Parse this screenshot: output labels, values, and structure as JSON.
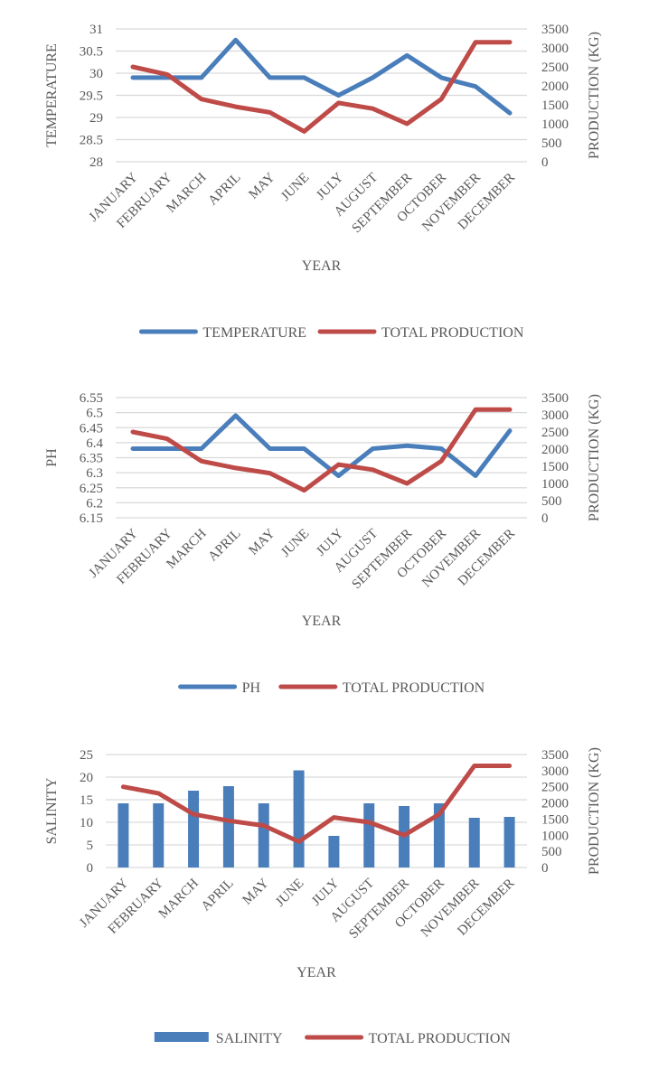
{
  "colors": {
    "blue": "#4a7ebb",
    "red": "#be4b48",
    "grid": "#d9d9d9",
    "text": "#595959"
  },
  "chart_data": [
    {
      "type": "line",
      "categories": [
        "JANUARY",
        "FEBRUARY",
        "MARCH",
        "APRIL",
        "MAY",
        "JUNE",
        "JULY",
        "AUGUST",
        "SEPTEMBER",
        "OCTOBER",
        "NOVEMBER",
        "DECEMBER"
      ],
      "xlabel": "YEAR",
      "ylabel": "TEMPERATURE",
      "y2label": "PRODUCTION (KG)",
      "ylim": [
        28,
        31
      ],
      "yticks": [
        "28",
        "28.5",
        "29",
        "29.5",
        "30",
        "30.5",
        "31"
      ],
      "y2lim": [
        0,
        3500
      ],
      "y2ticks": [
        "0",
        "500",
        "1000",
        "1500",
        "2000",
        "2500",
        "3000",
        "3500"
      ],
      "grid": true,
      "legend_position": "bottom",
      "series": [
        {
          "name": "TEMPERATURE",
          "axis": "left",
          "type": "line",
          "color": "#4a7ebb",
          "values": [
            29.9,
            29.9,
            29.9,
            30.75,
            29.9,
            29.9,
            29.5,
            29.9,
            30.4,
            29.9,
            29.7,
            29.1
          ]
        },
        {
          "name": "TOTAL PRODUCTION",
          "axis": "right",
          "type": "line",
          "color": "#be4b48",
          "values": [
            2500,
            2300,
            1650,
            1450,
            1300,
            800,
            1550,
            1400,
            1000,
            1650,
            3150,
            3150
          ]
        }
      ]
    },
    {
      "type": "line",
      "categories": [
        "JANUARY",
        "FEBRUARY",
        "MARCH",
        "APRIL",
        "MAY",
        "JUNE",
        "JULY",
        "AUGUST",
        "SEPTEMBER",
        "OCTOBER",
        "NOVEMBER",
        "DECEMBER"
      ],
      "xlabel": "YEAR",
      "ylabel": "PH",
      "y2label": "PRODUCTION (KG)",
      "ylim": [
        6.15,
        6.55
      ],
      "yticks": [
        "6.15",
        "6.2",
        "6.25",
        "6.3",
        "6.35",
        "6.4",
        "6.45",
        "6.5",
        "6.55"
      ],
      "y2lim": [
        0,
        3500
      ],
      "y2ticks": [
        "0",
        "500",
        "1000",
        "1500",
        "2000",
        "2500",
        "3000",
        "3500"
      ],
      "grid": true,
      "legend_position": "bottom",
      "series": [
        {
          "name": "PH",
          "axis": "left",
          "type": "line",
          "color": "#4a7ebb",
          "values": [
            6.38,
            6.38,
            6.38,
            6.49,
            6.38,
            6.38,
            6.29,
            6.38,
            6.39,
            6.38,
            6.29,
            6.44
          ]
        },
        {
          "name": "TOTAL PRODUCTION",
          "axis": "right",
          "type": "line",
          "color": "#be4b48",
          "values": [
            2500,
            2300,
            1650,
            1450,
            1300,
            800,
            1550,
            1400,
            1000,
            1650,
            3150,
            3150
          ]
        }
      ]
    },
    {
      "type": "bar",
      "categories": [
        "JANUARY",
        "FEBRUARY",
        "MARCH",
        "APRIL",
        "MAY",
        "JUNE",
        "JULY",
        "AUGUST",
        "SEPTEMBER",
        "OCTOBER",
        "NOVEMBER",
        "DECEMBER"
      ],
      "xlabel": "YEAR",
      "ylabel": "SALINITY",
      "y2label": "PRODUCTION (KG)",
      "ylim": [
        0,
        25
      ],
      "yticks": [
        "0",
        "5",
        "10",
        "15",
        "20",
        "25"
      ],
      "y2lim": [
        0,
        3500
      ],
      "y2ticks": [
        "0",
        "500",
        "1000",
        "1500",
        "2000",
        "2500",
        "3000",
        "3500"
      ],
      "grid": true,
      "legend_position": "bottom",
      "series": [
        {
          "name": "SALINITY",
          "axis": "left",
          "type": "bar",
          "color": "#4a7ebb",
          "values": [
            14.2,
            14.2,
            17,
            18,
            14.2,
            21.5,
            7,
            14.2,
            13.6,
            14.2,
            11,
            11.2
          ]
        },
        {
          "name": "TOTAL PRODUCTION",
          "axis": "right",
          "type": "line",
          "color": "#be4b48",
          "values": [
            2500,
            2300,
            1650,
            1450,
            1300,
            800,
            1550,
            1400,
            1000,
            1650,
            3150,
            3150
          ]
        }
      ]
    }
  ]
}
